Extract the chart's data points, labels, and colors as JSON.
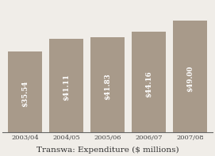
{
  "categories": [
    "2003/04",
    "2004/05",
    "2005/06",
    "2006/07",
    "2007/08"
  ],
  "values": [
    35.54,
    41.11,
    41.83,
    44.16,
    49.0
  ],
  "labels": [
    "$35.54",
    "$41.11",
    "$41.83",
    "$44.16",
    "$49.00"
  ],
  "bar_color": "#a89a8a",
  "title": "Transwa: Expenditure ($ millions)",
  "title_fontsize": 7.5,
  "label_fontsize": 6.2,
  "tick_fontsize": 6.0,
  "background_color": "#f0ede8",
  "ylim": [
    0,
    57
  ],
  "bar_width": 0.82
}
